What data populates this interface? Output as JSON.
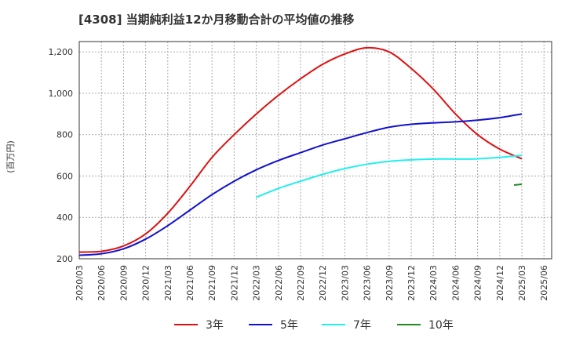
{
  "chart_data": {
    "type": "line",
    "title": "[4308]  当期純利益12か月移動合計の平均値の推移",
    "ylabel": "(百万円)",
    "xlabel": "",
    "ylim": [
      200,
      1250
    ],
    "yticks": [
      200,
      400,
      600,
      800,
      1000,
      1200
    ],
    "ytick_labels": [
      "200",
      "400",
      "600",
      "800",
      "1,000",
      "1,200"
    ],
    "x": [
      "2020/03",
      "2020/06",
      "2020/09",
      "2020/12",
      "2021/03",
      "2021/06",
      "2021/09",
      "2021/12",
      "2022/03",
      "2022/06",
      "2022/09",
      "2022/12",
      "2023/03",
      "2023/06",
      "2023/09",
      "2023/12",
      "2024/03",
      "2024/06",
      "2024/09",
      "2024/12",
      "2025/03",
      "2025/06"
    ],
    "grid": true,
    "legend_position": "bottom",
    "series": [
      {
        "name": "3年",
        "color": "#dd1111",
        "values": [
          232,
          236,
          262,
          320,
          420,
          550,
          690,
          800,
          900,
          990,
          1070,
          1140,
          1190,
          1220,
          1200,
          1120,
          1020,
          900,
          800,
          730,
          683,
          null
        ]
      },
      {
        "name": "5年",
        "color": "#1111cc",
        "values": [
          217,
          224,
          248,
          295,
          360,
          435,
          510,
          575,
          630,
          675,
          713,
          750,
          780,
          810,
          836,
          850,
          857,
          862,
          870,
          882,
          900,
          null
        ]
      },
      {
        "name": "7年",
        "color": "#22eeee",
        "values": [
          null,
          null,
          null,
          null,
          null,
          null,
          null,
          null,
          497,
          540,
          575,
          608,
          636,
          657,
          671,
          678,
          682,
          682,
          683,
          690,
          700,
          null
        ]
      },
      {
        "name": "10年",
        "color": "#228b22",
        "values": [
          null,
          null,
          null,
          null,
          null,
          null,
          null,
          null,
          null,
          null,
          null,
          null,
          null,
          null,
          null,
          null,
          null,
          null,
          null,
          null,
          560,
          null
        ]
      }
    ]
  }
}
